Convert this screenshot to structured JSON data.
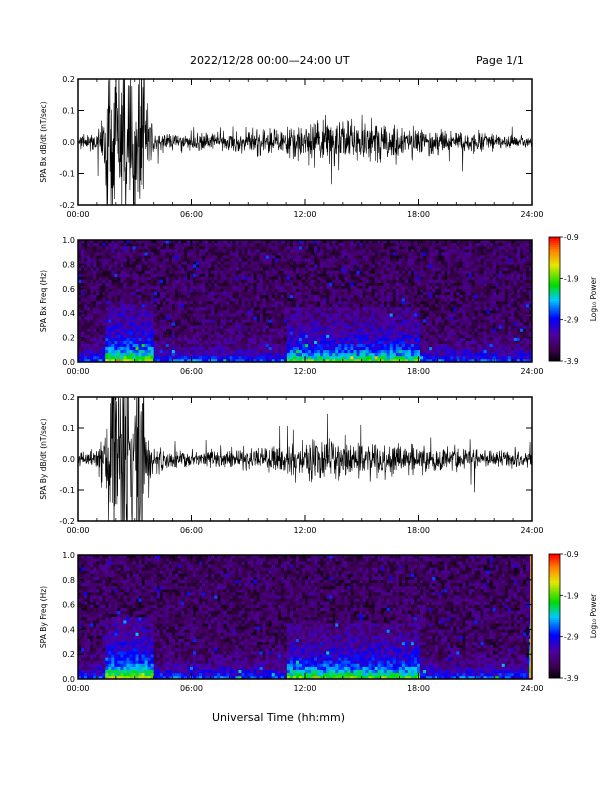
{
  "header": {
    "title": "2022/12/28  00:00—24:00 UT",
    "page": "Page 1/1"
  },
  "x_axis_title": "Universal Time (hh:mm)",
  "colors": {
    "trace": "#000000",
    "background": "#ffffff"
  },
  "chart_data": [
    {
      "type": "line",
      "ylabel": "SPA Bx dB/dt (nT/sec)",
      "xlim": [
        "00:00",
        "24:00"
      ],
      "ylim": [
        -0.2,
        0.2
      ],
      "x_ticks": [
        "00:00",
        "06:00",
        "12:00",
        "18:00",
        "24:00"
      ],
      "y_ticks": [
        "-0.2",
        "-0.1",
        "0.0",
        "0.1",
        "0.2"
      ],
      "series": [
        {
          "x_hours": [
            0,
            1,
            1.5,
            2,
            2.5,
            3,
            3.5,
            4,
            5,
            6,
            7,
            8,
            9,
            10,
            11,
            12,
            13,
            14,
            15,
            16,
            17,
            18,
            19,
            20,
            21,
            22,
            23,
            24
          ],
          "amplitude": [
            0.03,
            0.04,
            0.2,
            0.2,
            0.2,
            0.2,
            0.2,
            0.06,
            0.04,
            0.04,
            0.05,
            0.05,
            0.06,
            0.07,
            0.08,
            0.1,
            0.11,
            0.1,
            0.11,
            0.1,
            0.08,
            0.07,
            0.06,
            0.05,
            0.05,
            0.04,
            0.03,
            0.03
          ]
        }
      ]
    },
    {
      "type": "heatmap",
      "ylabel": "SPA Bx Freq (Hz)",
      "xlim": [
        "00:00",
        "24:00"
      ],
      "ylim": [
        0,
        1.0
      ],
      "x_ticks": [
        "00:00",
        "06:00",
        "12:00",
        "18:00",
        "24:00"
      ],
      "y_ticks": [
        "0.0",
        "0.2",
        "0.4",
        "0.6",
        "0.8",
        "1.0"
      ],
      "colorbar": {
        "label": "Log₁₀ Power",
        "min": -3.9,
        "max": -0.9,
        "ticks": [
          "-0.9",
          "-1.9",
          "-2.9",
          "-3.9"
        ]
      },
      "features": [
        {
          "x_hours": [
            1.5,
            4
          ],
          "max_freq_hz": 0.5,
          "peak_power": -2.1
        },
        {
          "x_hours": [
            11,
            18
          ],
          "max_freq_hz": 0.45,
          "peak_power": -2.5
        }
      ]
    },
    {
      "type": "line",
      "ylabel": "SPA By dB/dt (nT/sec)",
      "xlim": [
        "00:00",
        "24:00"
      ],
      "ylim": [
        -0.2,
        0.2
      ],
      "x_ticks": [
        "00:00",
        "06:00",
        "12:00",
        "18:00",
        "24:00"
      ],
      "y_ticks": [
        "-0.2",
        "-0.1",
        "0.0",
        "0.1",
        "0.2"
      ],
      "series": [
        {
          "x_hours": [
            0,
            1,
            1.5,
            2,
            2.5,
            3,
            3.5,
            4,
            5,
            6,
            7,
            8,
            9,
            10,
            11,
            12,
            13,
            14,
            15,
            16,
            17,
            18,
            19,
            20,
            21,
            22,
            23,
            24
          ],
          "amplitude": [
            0.03,
            0.05,
            0.2,
            0.2,
            0.2,
            0.2,
            0.2,
            0.07,
            0.05,
            0.04,
            0.05,
            0.05,
            0.05,
            0.06,
            0.07,
            0.1,
            0.11,
            0.1,
            0.1,
            0.1,
            0.08,
            0.07,
            0.06,
            0.06,
            0.05,
            0.04,
            0.04,
            0.04
          ]
        }
      ]
    },
    {
      "type": "heatmap",
      "ylabel": "SPA By Freq (Hz)",
      "xlim": [
        "00:00",
        "24:00"
      ],
      "ylim": [
        0,
        1.0
      ],
      "x_ticks": [
        "00:00",
        "06:00",
        "12:00",
        "18:00",
        "24:00"
      ],
      "y_ticks": [
        "0.0",
        "0.2",
        "0.4",
        "0.6",
        "0.8",
        "1.0"
      ],
      "colorbar": {
        "label": "Log₁₀ Power",
        "min": -3.9,
        "max": -0.9,
        "ticks": [
          "-0.9",
          "-1.9",
          "-2.9",
          "-3.9"
        ]
      },
      "features": [
        {
          "x_hours": [
            1.5,
            4
          ],
          "max_freq_hz": 0.5,
          "peak_power": -2.0
        },
        {
          "x_hours": [
            11,
            18
          ],
          "max_freq_hz": 0.45,
          "peak_power": -2.4
        },
        {
          "x_hours": [
            23.9,
            24
          ],
          "max_freq_hz": 1.0,
          "peak_power": -1.3
        }
      ]
    }
  ]
}
